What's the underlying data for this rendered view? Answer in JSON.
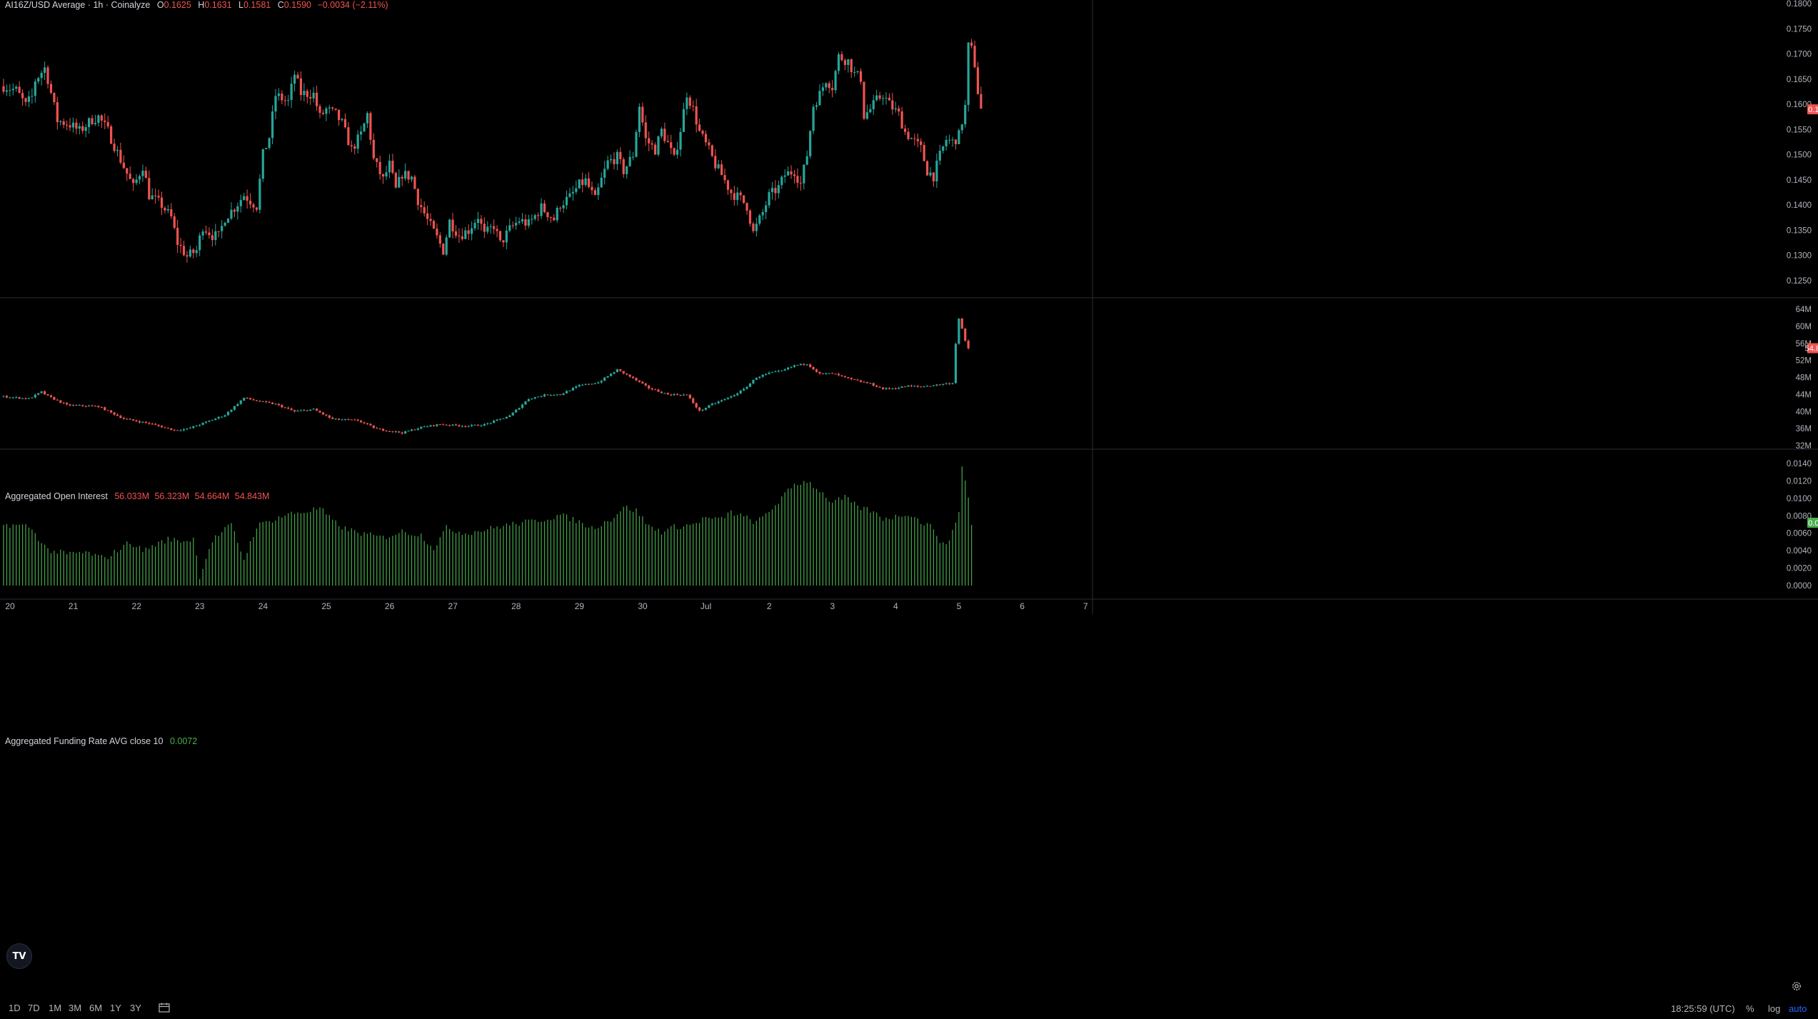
{
  "header": {
    "symbol": "AI16Z/USD Average · 1h · Coinalyze",
    "o_key": "O",
    "o": "0.1625",
    "h_key": "H",
    "h": "0.1631",
    "l_key": "L",
    "l": "0.1581",
    "c_key": "C",
    "c": "0.1590",
    "change": "−0.0034 (−2.11%)"
  },
  "oi_legend": {
    "title": "Aggregated Open Interest",
    "o": "56.033M",
    "h": "56.323M",
    "l": "54.664M",
    "c": "54.843M"
  },
  "fr_legend": {
    "title": "Aggregated Funding Rate AVG close 10",
    "value": "0.0072"
  },
  "colors": {
    "up": "#26a69a",
    "down": "#ef5350",
    "funding": "#4caf50",
    "funding_badge": "#4caf50",
    "price_badge": "#ef5350"
  },
  "chart_data": [
    {
      "type": "candlestick",
      "title": "AI16Z/USD Average · 1h · Coinalyze",
      "y_ticks": [
        "0.1800",
        "0.1750",
        "0.1700",
        "0.1650",
        "0.1600",
        "0.1550",
        "0.1500",
        "0.1450",
        "0.1400",
        "0.1350",
        "0.1300",
        "0.1250"
      ],
      "ylim": [
        0.1215,
        0.18
      ],
      "last_value": "0.1590",
      "x_start": "2025-06-19T21:00",
      "x_end": "2025-07-05T14:00",
      "anchors": [
        [
          0,
          0.1636
        ],
        [
          4,
          0.1628
        ],
        [
          7,
          0.1598
        ],
        [
          9,
          0.1615
        ],
        [
          10,
          0.1648
        ],
        [
          13,
          0.1672
        ],
        [
          14,
          0.165
        ],
        [
          17,
          0.1568
        ],
        [
          21,
          0.156
        ],
        [
          24,
          0.1547
        ],
        [
          28,
          0.157
        ],
        [
          30,
          0.1575
        ],
        [
          33,
          0.1547
        ],
        [
          37,
          0.149
        ],
        [
          41,
          0.1435
        ],
        [
          44,
          0.1478
        ],
        [
          46,
          0.142
        ],
        [
          50,
          0.14
        ],
        [
          53,
          0.1375
        ],
        [
          55,
          0.1325
        ],
        [
          58,
          0.1298
        ],
        [
          61,
          0.131
        ],
        [
          63,
          0.1358
        ],
        [
          66,
          0.134
        ],
        [
          68,
          0.1338
        ],
        [
          70,
          0.1375
        ],
        [
          73,
          0.1395
        ],
        [
          76,
          0.142
        ],
        [
          80,
          0.1398
        ],
        [
          82,
          0.15
        ],
        [
          84,
          0.1535
        ],
        [
          86,
          0.1618
        ],
        [
          90,
          0.1605
        ],
        [
          92,
          0.166
        ],
        [
          94,
          0.1622
        ],
        [
          98,
          0.162
        ],
        [
          100,
          0.1575
        ],
        [
          102,
          0.159
        ],
        [
          105,
          0.158
        ],
        [
          107,
          0.1562
        ],
        [
          110,
          0.151
        ],
        [
          113,
          0.154
        ],
        [
          115,
          0.158
        ],
        [
          117,
          0.149
        ],
        [
          120,
          0.145
        ],
        [
          122,
          0.148
        ],
        [
          124,
          0.143
        ],
        [
          126,
          0.1462
        ],
        [
          129,
          0.1455
        ],
        [
          131,
          0.141
        ],
        [
          134,
          0.137
        ],
        [
          137,
          0.1335
        ],
        [
          139,
          0.131
        ],
        [
          141,
          0.1368
        ],
        [
          144,
          0.134
        ],
        [
          147,
          0.135
        ],
        [
          150,
          0.1378
        ],
        [
          152,
          0.134
        ],
        [
          155,
          0.136
        ],
        [
          157,
          0.1323
        ],
        [
          160,
          0.1352
        ],
        [
          163,
          0.137
        ],
        [
          166,
          0.1362
        ],
        [
          170,
          0.1395
        ],
        [
          174,
          0.1372
        ],
        [
          176,
          0.1402
        ],
        [
          179,
          0.1415
        ],
        [
          182,
          0.144
        ],
        [
          184,
          0.1448
        ],
        [
          187,
          0.141
        ],
        [
          189,
          0.145
        ],
        [
          191,
          0.1485
        ],
        [
          194,
          0.1495
        ],
        [
          196,
          0.1468
        ],
        [
          199,
          0.15
        ],
        [
          201,
          0.1598
        ],
        [
          203,
          0.153
        ],
        [
          206,
          0.151
        ],
        [
          208,
          0.1548
        ],
        [
          210,
          0.1522
        ],
        [
          212,
          0.149
        ],
        [
          214,
          0.155
        ],
        [
          216,
          0.1622
        ],
        [
          218,
          0.159
        ],
        [
          220,
          0.1545
        ],
        [
          223,
          0.1508
        ],
        [
          225,
          0.148
        ],
        [
          227,
          0.146
        ],
        [
          230,
          0.1425
        ],
        [
          233,
          0.1412
        ],
        [
          235,
          0.1398
        ],
        [
          237,
          0.1345
        ],
        [
          240,
          0.1385
        ],
        [
          242,
          0.1418
        ],
        [
          245,
          0.1435
        ],
        [
          247,
          0.146
        ],
        [
          250,
          0.1468
        ],
        [
          252,
          0.1442
        ],
        [
          254,
          0.15
        ],
        [
          256,
          0.1598
        ],
        [
          258,
          0.162
        ],
        [
          260,
          0.165
        ],
        [
          262,
          0.1635
        ],
        [
          264,
          0.1695
        ],
        [
          267,
          0.1686
        ],
        [
          269,
          0.166
        ],
        [
          271,
          0.1652
        ],
        [
          272,
          0.1578
        ],
        [
          274,
          0.159
        ],
        [
          276,
          0.1608
        ],
        [
          278,
          0.162
        ],
        [
          280,
          0.16
        ],
        [
          283,
          0.158
        ],
        [
          285,
          0.1545
        ],
        [
          287,
          0.1532
        ],
        [
          290,
          0.1512
        ],
        [
          292,
          0.1468
        ],
        [
          294,
          0.1458
        ],
        [
          296,
          0.1498
        ],
        [
          298,
          0.153
        ],
        [
          300,
          0.1525
        ],
        [
          302,
          0.1538
        ],
        [
          304,
          0.1595
        ],
        [
          305,
          0.1715
        ],
        [
          306,
          0.1708
        ],
        [
          307,
          0.168
        ],
        [
          308,
          0.1625
        ],
        [
          309,
          0.159
        ]
      ]
    },
    {
      "type": "candlestick",
      "title": "Aggregated Open Interest",
      "y_ticks": [
        "64M",
        "60M",
        "56M",
        "52M",
        "48M",
        "44M",
        "40M",
        "36M",
        "32M"
      ],
      "ylim": [
        31.3,
        64.5
      ],
      "last_value": "54.843M",
      "anchors": [
        [
          0,
          43.5
        ],
        [
          8,
          43.0
        ],
        [
          12,
          44.6
        ],
        [
          14,
          43.6
        ],
        [
          20,
          41.5
        ],
        [
          30,
          41.2
        ],
        [
          38,
          38.3
        ],
        [
          46,
          37.2
        ],
        [
          54,
          35.6
        ],
        [
          58,
          35.9
        ],
        [
          64,
          37.5
        ],
        [
          70,
          39.2
        ],
        [
          76,
          43.2
        ],
        [
          80,
          42.5
        ],
        [
          86,
          41.7
        ],
        [
          92,
          40.0
        ],
        [
          98,
          40.5
        ],
        [
          104,
          38.2
        ],
        [
          112,
          37.9
        ],
        [
          118,
          35.9
        ],
        [
          126,
          35.0
        ],
        [
          132,
          36.3
        ],
        [
          138,
          37.0
        ],
        [
          146,
          36.6
        ],
        [
          152,
          36.9
        ],
        [
          160,
          39.0
        ],
        [
          166,
          43.0
        ],
        [
          172,
          44.0
        ],
        [
          176,
          44.0
        ],
        [
          182,
          46.1
        ],
        [
          188,
          46.8
        ],
        [
          194,
          49.8
        ],
        [
          198,
          48.2
        ],
        [
          204,
          45.5
        ],
        [
          210,
          44.0
        ],
        [
          216,
          43.9
        ],
        [
          218,
          42.0
        ],
        [
          220,
          40.1
        ],
        [
          224,
          41.7
        ],
        [
          230,
          43.5
        ],
        [
          234,
          45.2
        ],
        [
          238,
          48.0
        ],
        [
          242,
          49.0
        ],
        [
          246,
          49.5
        ],
        [
          250,
          50.8
        ],
        [
          254,
          51.2
        ],
        [
          258,
          48.8
        ],
        [
          262,
          48.9
        ],
        [
          268,
          47.5
        ],
        [
          274,
          46.5
        ],
        [
          278,
          45.3
        ],
        [
          282,
          45.5
        ],
        [
          286,
          46.0
        ],
        [
          290,
          45.8
        ],
        [
          300,
          46.7
        ],
        [
          301,
          56.0
        ],
        [
          302,
          61.8
        ],
        [
          303,
          59.3
        ],
        [
          304,
          56.5
        ],
        [
          305,
          54.8
        ]
      ]
    },
    {
      "type": "bar",
      "title": "Aggregated Funding Rate AVG close 10",
      "y_ticks": [
        "0.0140",
        "0.0120",
        "0.0100",
        "0.0080",
        "0.0060",
        "0.0040",
        "0.0020",
        "0.0000"
      ],
      "ylim": [
        -0.0003,
        0.0143
      ],
      "last_value": "0.0072",
      "anchors": [
        [
          0,
          0.007
        ],
        [
          8,
          0.0068
        ],
        [
          14,
          0.0041
        ],
        [
          20,
          0.0036
        ],
        [
          26,
          0.0038
        ],
        [
          32,
          0.0031
        ],
        [
          40,
          0.005
        ],
        [
          44,
          0.004
        ],
        [
          48,
          0.0047
        ],
        [
          52,
          0.0053
        ],
        [
          58,
          0.0051
        ],
        [
          60,
          0.0055
        ],
        [
          62,
          0.0011
        ],
        [
          66,
          0.0052
        ],
        [
          72,
          0.007
        ],
        [
          76,
          0.003
        ],
        [
          80,
          0.0068
        ],
        [
          84,
          0.0074
        ],
        [
          90,
          0.0082
        ],
        [
          96,
          0.0085
        ],
        [
          100,
          0.0089
        ],
        [
          104,
          0.0074
        ],
        [
          108,
          0.0065
        ],
        [
          114,
          0.0059
        ],
        [
          120,
          0.0055
        ],
        [
          126,
          0.0062
        ],
        [
          132,
          0.0058
        ],
        [
          136,
          0.0043
        ],
        [
          140,
          0.0066
        ],
        [
          146,
          0.006
        ],
        [
          152,
          0.0064
        ],
        [
          160,
          0.007
        ],
        [
          166,
          0.0073
        ],
        [
          172,
          0.0077
        ],
        [
          176,
          0.0081
        ],
        [
          182,
          0.0073
        ],
        [
          186,
          0.0066
        ],
        [
          192,
          0.0076
        ],
        [
          196,
          0.009
        ],
        [
          200,
          0.0086
        ],
        [
          204,
          0.0068
        ],
        [
          208,
          0.0062
        ],
        [
          212,
          0.0067
        ],
        [
          218,
          0.007
        ],
        [
          222,
          0.0078
        ],
        [
          226,
          0.0075
        ],
        [
          230,
          0.0084
        ],
        [
          234,
          0.0079
        ],
        [
          238,
          0.0072
        ],
        [
          242,
          0.0085
        ],
        [
          246,
          0.01
        ],
        [
          250,
          0.0116
        ],
        [
          254,
          0.012
        ],
        [
          258,
          0.0109
        ],
        [
          262,
          0.0095
        ],
        [
          266,
          0.0101
        ],
        [
          270,
          0.009
        ],
        [
          274,
          0.0086
        ],
        [
          278,
          0.0077
        ],
        [
          282,
          0.0079
        ],
        [
          286,
          0.0083
        ],
        [
          290,
          0.0073
        ],
        [
          294,
          0.0066
        ],
        [
          296,
          0.0052
        ],
        [
          298,
          0.0044
        ],
        [
          300,
          0.0064
        ],
        [
          302,
          0.0083
        ],
        [
          303,
          0.0139
        ],
        [
          305,
          0.01
        ],
        [
          306,
          0.0072
        ]
      ]
    }
  ],
  "x_axis": {
    "labels": [
      "20",
      "21",
      "22",
      "23",
      "24",
      "25",
      "26",
      "27",
      "28",
      "29",
      "30",
      "Jul",
      "2",
      "3",
      "4",
      "5",
      "6",
      "7"
    ]
  },
  "toolbar": {
    "timeframes": [
      "1D",
      "7D",
      "1M",
      "3M",
      "6M",
      "1Y",
      "3Y"
    ],
    "clock": "18:25:59 (UTC)",
    "pct": "%",
    "log": "log",
    "auto": "auto"
  },
  "logo": "TV"
}
